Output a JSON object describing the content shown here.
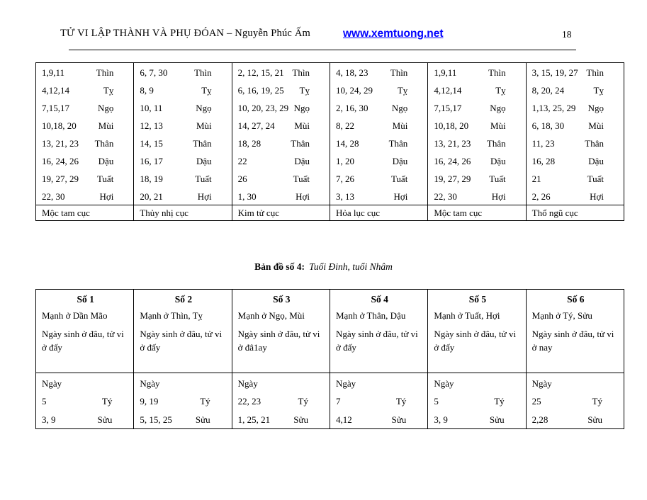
{
  "header": {
    "title": "TỬ VI LẬP THÀNH VÀ PHỤ ĐÓAN – Nguyễn Phúc Ấm",
    "link": "www.xemtuong.net",
    "page_number": "18",
    "link_color": "#0000ff"
  },
  "cuc_table": {
    "columns": [
      {
        "rows": [
          {
            "days": "1,9,11",
            "branch": "Thìn"
          },
          {
            "days": "4,12,14",
            "branch": "Tỵ"
          },
          {
            "days": "7,15,17",
            "branch": "Ngọ"
          },
          {
            "days": "10,18, 20",
            "branch": "Mùi"
          },
          {
            "days": "13, 21, 23",
            "branch": "Thân"
          },
          {
            "days": "16, 24, 26",
            "branch": "Dậu"
          },
          {
            "days": "19, 27, 29",
            "branch": "Tuất"
          },
          {
            "days": "22, 30",
            "branch": "Hợi"
          }
        ],
        "cuc": "Mộc tam cục"
      },
      {
        "rows": [
          {
            "days": "6, 7, 30",
            "branch": "Thìn"
          },
          {
            "days": "8, 9",
            "branch": "Tỵ"
          },
          {
            "days": "10, 11",
            "branch": "Ngọ"
          },
          {
            "days": "12, 13",
            "branch": "Mùi"
          },
          {
            "days": "14, 15",
            "branch": "Thân"
          },
          {
            "days": "16, 17",
            "branch": "Dậu"
          },
          {
            "days": "18, 19",
            "branch": "Tuất"
          },
          {
            "days": "20, 21",
            "branch": "Hợi"
          }
        ],
        "cuc": "Thủy nhị cục"
      },
      {
        "rows": [
          {
            "days": "2, 12, 15, 21",
            "branch": "Thìn"
          },
          {
            "days": "6, 16, 19, 25",
            "branch": "Tỵ"
          },
          {
            "days": "10, 20, 23, 29",
            "branch": "Ngọ"
          },
          {
            "days": "14, 27, 24",
            "branch": "Mùi"
          },
          {
            "days": "18, 28",
            "branch": "Thân"
          },
          {
            "days": "22",
            "branch": "Dậu"
          },
          {
            "days": "26",
            "branch": "Tuất"
          },
          {
            "days": "1, 30",
            "branch": "Hợi"
          }
        ],
        "cuc": "Kim tử cục"
      },
      {
        "rows": [
          {
            "days": "4, 18, 23",
            "branch": "Thìn"
          },
          {
            "days": "10, 24, 29",
            "branch": "Tỵ"
          },
          {
            "days": "2, 16, 30",
            "branch": "Ngọ"
          },
          {
            "days": "8, 22",
            "branch": "Mùi"
          },
          {
            "days": "14, 28",
            "branch": "Thân"
          },
          {
            "days": "1, 20",
            "branch": "Dậu"
          },
          {
            "days": "7, 26",
            "branch": "Tuất"
          },
          {
            "days": "3, 13",
            "branch": "Hợi"
          }
        ],
        "cuc": "Hỏa lục cục"
      },
      {
        "rows": [
          {
            "days": "1,9,11",
            "branch": "Thìn"
          },
          {
            "days": "4,12,14",
            "branch": "Tỵ"
          },
          {
            "days": "7,15,17",
            "branch": "Ngọ"
          },
          {
            "days": "10,18, 20",
            "branch": "Mùi"
          },
          {
            "days": "13, 21, 23",
            "branch": "Thân"
          },
          {
            "days": "16, 24, 26",
            "branch": "Dậu"
          },
          {
            "days": "19, 27, 29",
            "branch": "Tuất"
          },
          {
            "days": "22, 30",
            "branch": "Hợi"
          }
        ],
        "cuc": "Mộc tam cục"
      },
      {
        "rows": [
          {
            "days": "3, 15, 19, 27",
            "branch": "Thìn"
          },
          {
            "days": "8, 20, 24",
            "branch": "Tỵ"
          },
          {
            "days": "1,13, 25, 29",
            "branch": "Ngọ"
          },
          {
            "days": "6, 18, 30",
            "branch": "Mùi"
          },
          {
            "days": "11, 23",
            "branch": "Thân"
          },
          {
            "days": "16, 28",
            "branch": "Dậu"
          },
          {
            "days": "21",
            "branch": "Tuất"
          },
          {
            "days": "2, 26",
            "branch": "Hợi"
          }
        ],
        "cuc": "Thổ ngũ cục"
      }
    ]
  },
  "caption": {
    "label": "Bản đồ số 4:",
    "text": "Tuổi Đinh, tuổi Nhâm"
  },
  "so_table": {
    "columns": [
      {
        "title": "Số 1",
        "manh": "Mạnh ở Dần Mão",
        "note": "Ngày sinh ở đâu, tử vi ở đấy",
        "ngay": "Ngày",
        "ty_days": "5",
        "ty": "Tý",
        "suu_days": "3, 9",
        "suu": "Sửu"
      },
      {
        "title": "Số 2",
        "manh": "Mạnh ở Thìn, Tỵ",
        "note": "Ngày sinh ở đâu, tử vi ở đấy",
        "ngay": "Ngày",
        "ty_days": "9, 19",
        "ty": "Tý",
        "suu_days": "5, 15, 25",
        "suu": "Sửu"
      },
      {
        "title": "Số 3",
        "manh": "Mạnh ở Ngọ, Mùi",
        "note": "Ngày sinh ở đâu, tử vi ở đâ1ay",
        "ngay": "Ngày",
        "ty_days": "22, 23",
        "ty": "Tý",
        "suu_days": "1, 25, 21",
        "suu": "Sửu"
      },
      {
        "title": "Số 4",
        "manh": "Mạnh ở Thân, Dậu",
        "note": "Ngày sinh ở đâu, tử vi ở đấy",
        "ngay": "Ngày",
        "ty_days": "7",
        "ty": "Tý",
        "suu_days": "4,12",
        "suu": "Sửu"
      },
      {
        "title": "Số 5",
        "manh": "Mạnh ở Tuất, Hợi",
        "note": "Ngày sinh ở đâu, tử vi ở đấy",
        "ngay": "Ngày",
        "ty_days": "5",
        "ty": "Tý",
        "suu_days": "3, 9",
        "suu": "Sửu"
      },
      {
        "title": "Số 6",
        "manh": "Mạnh ở Tý, Sửu",
        "note": "Ngày sinh ở đâu, tử vi ở nay",
        "ngay": "Ngày",
        "ty_days": "25",
        "ty": "Tý",
        "suu_days": "2,28",
        "suu": "Sửu"
      }
    ]
  }
}
